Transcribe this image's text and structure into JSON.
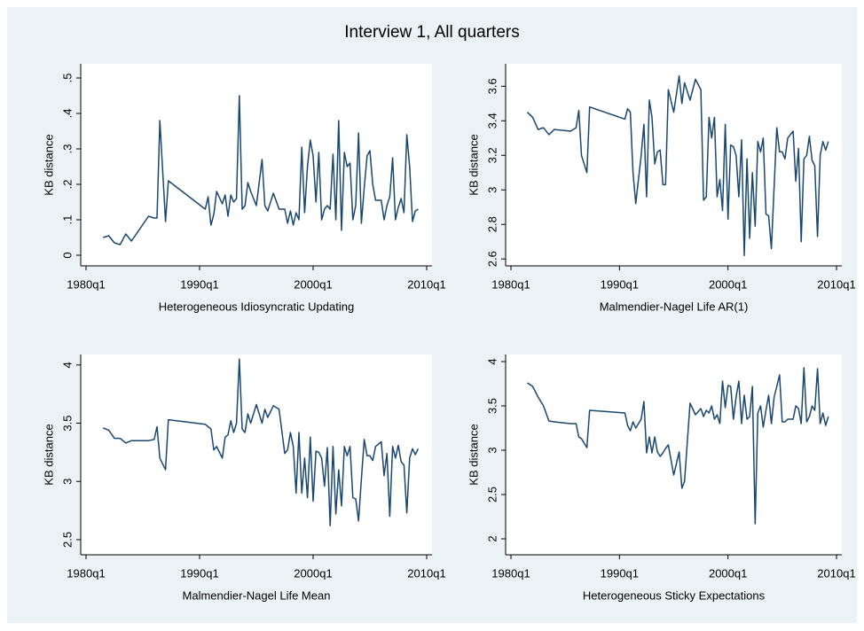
{
  "title": "Interview 1, All quarters",
  "chart_data": [
    {
      "type": "line",
      "x_label": "Heterogeneous Idiosyncratic Updating",
      "y_label": "KB distance",
      "color": "#1a476f",
      "x": [
        "1981q3",
        "1982q1",
        "1982q3",
        "1983q1",
        "1983q3",
        "1984q1",
        "1985q3",
        "1986q1",
        "1986q2",
        "1986q3",
        "1987q1",
        "1987q2",
        "1990q3",
        "1990q4",
        "1991q1",
        "1991q2",
        "1991q3",
        "1992q1",
        "1992q2",
        "1992q3",
        "1992q4",
        "1993q1",
        "1993q2",
        "1993q3",
        "1993q4",
        "1994q1",
        "1994q2",
        "1994q3",
        "1995q1",
        "1995q3",
        "1995q4",
        "1996q1",
        "1996q3",
        "1997q1",
        "1997q3",
        "1997q4",
        "1998q1",
        "1998q2",
        "1998q3",
        "1998q4",
        "1999q1",
        "1999q2",
        "1999q3",
        "1999q4",
        "2000q1",
        "2000q2",
        "2000q3",
        "2000q4",
        "2001q1",
        "2001q2",
        "2001q3",
        "2001q4",
        "2002q1",
        "2002q2",
        "2002q3",
        "2002q4",
        "2003q1",
        "2003q2",
        "2003q3",
        "2003q4",
        "2004q1",
        "2004q2",
        "2004q3",
        "2004q4",
        "2005q1",
        "2005q2",
        "2005q3",
        "2006q1",
        "2006q2",
        "2006q3",
        "2006q4",
        "2007q1",
        "2007q2",
        "2007q3",
        "2007q4",
        "2008q1",
        "2008q2",
        "2008q3",
        "2008q4",
        "2009q1",
        "2009q2"
      ],
      "values": [
        0.05,
        0.055,
        0.035,
        0.03,
        0.06,
        0.04,
        0.11,
        0.105,
        0.105,
        0.38,
        0.095,
        0.21,
        0.13,
        0.165,
        0.085,
        0.115,
        0.18,
        0.145,
        0.17,
        0.11,
        0.17,
        0.15,
        0.16,
        0.45,
        0.13,
        0.14,
        0.205,
        0.18,
        0.14,
        0.27,
        0.14,
        0.125,
        0.175,
        0.13,
        0.13,
        0.09,
        0.125,
        0.085,
        0.12,
        0.1,
        0.305,
        0.12,
        0.25,
        0.325,
        0.28,
        0.15,
        0.29,
        0.1,
        0.13,
        0.14,
        0.13,
        0.285,
        0.1,
        0.38,
        0.07,
        0.29,
        0.25,
        0.26,
        0.1,
        0.14,
        0.345,
        0.09,
        0.19,
        0.28,
        0.295,
        0.2,
        0.155,
        0.155,
        0.1,
        0.14,
        0.165,
        0.275,
        0.1,
        0.135,
        0.16,
        0.12,
        0.34,
        0.25,
        0.095,
        0.125,
        0.13
      ],
      "xlim": [
        "1980q1",
        "2010q1"
      ],
      "xticks": [
        "1980q1",
        "1990q1",
        "2000q1",
        "2010q1"
      ],
      "ylim": [
        -0.03,
        0.54
      ],
      "yticks": [
        0,
        {
          "value": 0.1,
          "label": ".1"
        },
        {
          "value": 0.2,
          "label": ".2"
        },
        {
          "value": 0.3,
          "label": ".3"
        },
        {
          "value": 0.4,
          "label": ".4"
        },
        {
          "value": 0.5,
          "label": ".5"
        }
      ]
    },
    {
      "type": "line",
      "x_label": "Malmendier-Nagel Life AR(1)",
      "y_label": "KB distance",
      "color": "#1a476f",
      "x": [
        "1981q3",
        "1982q1",
        "1982q3",
        "1983q1",
        "1983q3",
        "1984q1",
        "1985q3",
        "1986q1",
        "1986q2",
        "1986q3",
        "1987q1",
        "1987q2",
        "1990q3",
        "1990q4",
        "1991q1",
        "1991q2",
        "1991q3",
        "1992q1",
        "1992q2",
        "1992q3",
        "1992q4",
        "1993q1",
        "1993q2",
        "1993q3",
        "1993q4",
        "1994q1",
        "1994q2",
        "1994q3",
        "1995q1",
        "1995q3",
        "1995q4",
        "1996q1",
        "1996q3",
        "1997q1",
        "1997q3",
        "1997q4",
        "1998q1",
        "1998q2",
        "1998q3",
        "1998q4",
        "1999q1",
        "1999q2",
        "1999q3",
        "1999q4",
        "2000q1",
        "2000q2",
        "2000q3",
        "2000q4",
        "2001q1",
        "2001q2",
        "2001q3",
        "2001q4",
        "2002q1",
        "2002q2",
        "2002q3",
        "2002q4",
        "2003q1",
        "2003q2",
        "2003q3",
        "2003q4",
        "2004q1",
        "2004q2",
        "2004q3",
        "2004q4",
        "2005q1",
        "2005q2",
        "2005q3",
        "2006q1",
        "2006q2",
        "2006q3",
        "2006q4",
        "2007q1",
        "2007q2",
        "2007q3",
        "2007q4",
        "2008q1",
        "2008q2",
        "2008q3",
        "2008q4",
        "2009q1",
        "2009q2"
      ],
      "values": [
        3.45,
        3.42,
        3.35,
        3.36,
        3.32,
        3.35,
        3.34,
        3.36,
        3.46,
        3.2,
        3.1,
        3.48,
        3.41,
        3.47,
        3.45,
        3.1,
        2.92,
        3.2,
        3.38,
        2.96,
        3.52,
        3.42,
        3.15,
        3.22,
        3.23,
        3.03,
        3.03,
        3.58,
        3.45,
        3.66,
        3.5,
        3.62,
        3.52,
        3.64,
        3.58,
        2.94,
        2.96,
        3.42,
        3.3,
        3.42,
        2.96,
        3.06,
        2.88,
        3.38,
        2.83,
        3.26,
        3.25,
        3.2,
        2.96,
        3.29,
        2.62,
        3.18,
        2.72,
        3.1,
        2.79,
        3.28,
        3.22,
        3.3,
        2.86,
        2.85,
        2.66,
        3.02,
        3.36,
        3.22,
        3.22,
        3.18,
        3.3,
        3.34,
        3.05,
        3.24,
        2.7,
        3.18,
        3.2,
        3.31,
        3.17,
        3.14,
        2.73,
        3.2,
        3.28,
        3.23,
        3.28
      ],
      "xlim": [
        "1980q1",
        "2010q1"
      ],
      "xticks": [
        "1980q1",
        "1990q1",
        "2000q1",
        "2010q1"
      ],
      "ylim": [
        2.56,
        3.73
      ],
      "yticks": [
        2.6,
        2.8,
        3,
        3.2,
        3.4,
        3.6
      ]
    },
    {
      "type": "line",
      "x_label": "Malmendier-Nagel Life Mean",
      "y_label": "KB distance",
      "color": "#1a476f",
      "x": [
        "1981q3",
        "1982q1",
        "1982q3",
        "1983q1",
        "1983q3",
        "1984q1",
        "1985q3",
        "1986q1",
        "1986q2",
        "1986q3",
        "1987q1",
        "1987q2",
        "1990q3",
        "1990q4",
        "1991q1",
        "1991q2",
        "1991q3",
        "1992q1",
        "1992q2",
        "1992q3",
        "1992q4",
        "1993q1",
        "1993q2",
        "1993q3",
        "1993q4",
        "1994q1",
        "1994q2",
        "1994q3",
        "1995q1",
        "1995q3",
        "1995q4",
        "1996q1",
        "1996q3",
        "1997q1",
        "1997q3",
        "1997q4",
        "1998q1",
        "1998q2",
        "1998q3",
        "1998q4",
        "1999q1",
        "1999q2",
        "1999q3",
        "1999q4",
        "2000q1",
        "2000q2",
        "2000q3",
        "2000q4",
        "2001q1",
        "2001q2",
        "2001q3",
        "2001q4",
        "2002q1",
        "2002q2",
        "2002q3",
        "2002q4",
        "2003q1",
        "2003q2",
        "2003q3",
        "2003q4",
        "2004q1",
        "2004q2",
        "2004q3",
        "2004q4",
        "2005q1",
        "2005q2",
        "2005q3",
        "2006q1",
        "2006q2",
        "2006q3",
        "2006q4",
        "2007q1",
        "2007q2",
        "2007q3",
        "2007q4",
        "2008q1",
        "2008q2",
        "2008q3",
        "2008q4",
        "2009q1",
        "2009q2"
      ],
      "values": [
        3.46,
        3.44,
        3.37,
        3.37,
        3.33,
        3.35,
        3.35,
        3.36,
        3.47,
        3.2,
        3.1,
        3.53,
        3.49,
        3.47,
        3.45,
        3.27,
        3.3,
        3.2,
        3.38,
        3.4,
        3.52,
        3.42,
        3.5,
        4.05,
        3.45,
        3.42,
        3.58,
        3.5,
        3.66,
        3.5,
        3.62,
        3.55,
        3.65,
        3.62,
        3.24,
        3.27,
        3.42,
        3.3,
        2.9,
        3.42,
        2.9,
        3.2,
        2.86,
        3.38,
        2.83,
        3.26,
        3.25,
        3.2,
        2.96,
        3.29,
        2.62,
        3.3,
        2.72,
        3.1,
        2.79,
        3.3,
        3.22,
        3.3,
        2.86,
        2.85,
        2.66,
        3.02,
        3.36,
        3.22,
        3.22,
        3.18,
        3.3,
        3.34,
        3.05,
        3.24,
        2.7,
        3.3,
        3.2,
        3.31,
        3.17,
        3.14,
        2.73,
        3.2,
        3.28,
        3.23,
        3.28
      ],
      "xlim": [
        "1980q1",
        "2010q1"
      ],
      "xticks": [
        "1980q1",
        "1990q1",
        "2000q1",
        "2010q1"
      ],
      "ylim": [
        2.37,
        4.09
      ],
      "yticks": [
        2.5,
        3,
        3.5,
        4
      ]
    },
    {
      "type": "line",
      "x_label": "Heterogeneous Sticky Expectations",
      "y_label": "KB distance",
      "color": "#1a476f",
      "x": [
        "1981q3",
        "1982q1",
        "1982q3",
        "1983q1",
        "1983q3",
        "1984q1",
        "1985q3",
        "1986q1",
        "1986q2",
        "1986q3",
        "1987q1",
        "1987q2",
        "1990q3",
        "1990q4",
        "1991q1",
        "1991q2",
        "1991q3",
        "1992q1",
        "1992q2",
        "1992q3",
        "1992q4",
        "1993q1",
        "1993q2",
        "1993q3",
        "1993q4",
        "1994q1",
        "1994q2",
        "1994q3",
        "1995q1",
        "1995q3",
        "1995q4",
        "1996q1",
        "1996q3",
        "1997q1",
        "1997q3",
        "1997q4",
        "1998q1",
        "1998q2",
        "1998q3",
        "1998q4",
        "1999q1",
        "1999q2",
        "1999q3",
        "1999q4",
        "2000q1",
        "2000q2",
        "2000q3",
        "2000q4",
        "2001q1",
        "2001q2",
        "2001q3",
        "2001q4",
        "2002q1",
        "2002q2",
        "2002q3",
        "2002q4",
        "2003q1",
        "2003q2",
        "2003q3",
        "2003q4",
        "2004q1",
        "2004q2",
        "2004q3",
        "2004q4",
        "2005q1",
        "2005q2",
        "2005q3",
        "2006q1",
        "2006q2",
        "2006q3",
        "2006q4",
        "2007q1",
        "2007q2",
        "2007q3",
        "2007q4",
        "2008q1",
        "2008q2",
        "2008q3",
        "2008q4",
        "2009q1",
        "2009q2"
      ],
      "values": [
        3.76,
        3.72,
        3.6,
        3.5,
        3.33,
        3.32,
        3.3,
        3.3,
        3.15,
        3.13,
        3.03,
        3.45,
        3.42,
        3.28,
        3.22,
        3.32,
        3.25,
        3.35,
        3.55,
        2.97,
        3.15,
        2.97,
        3.15,
        2.98,
        2.93,
        2.97,
        3.02,
        3.06,
        2.72,
        2.98,
        2.57,
        2.65,
        3.53,
        3.4,
        3.47,
        3.38,
        3.45,
        3.42,
        3.5,
        3.35,
        3.4,
        3.3,
        3.78,
        3.48,
        3.73,
        3.72,
        3.35,
        3.6,
        3.78,
        3.3,
        3.62,
        3.35,
        3.38,
        3.72,
        2.17,
        3.42,
        3.5,
        3.26,
        3.45,
        3.62,
        3.3,
        3.6,
        3.72,
        3.85,
        3.32,
        3.32,
        3.35,
        3.35,
        3.5,
        3.47,
        3.3,
        3.93,
        3.32,
        3.38,
        3.5,
        3.45,
        3.92,
        3.3,
        3.42,
        3.28,
        3.38
      ],
      "xlim": [
        "1980q1",
        "2010q1"
      ],
      "xticks": [
        "1980q1",
        "1990q1",
        "2000q1",
        "2010q1"
      ],
      "ylim": [
        1.82,
        4.08
      ],
      "yticks": [
        2,
        2.5,
        3,
        3.5,
        4
      ]
    }
  ]
}
